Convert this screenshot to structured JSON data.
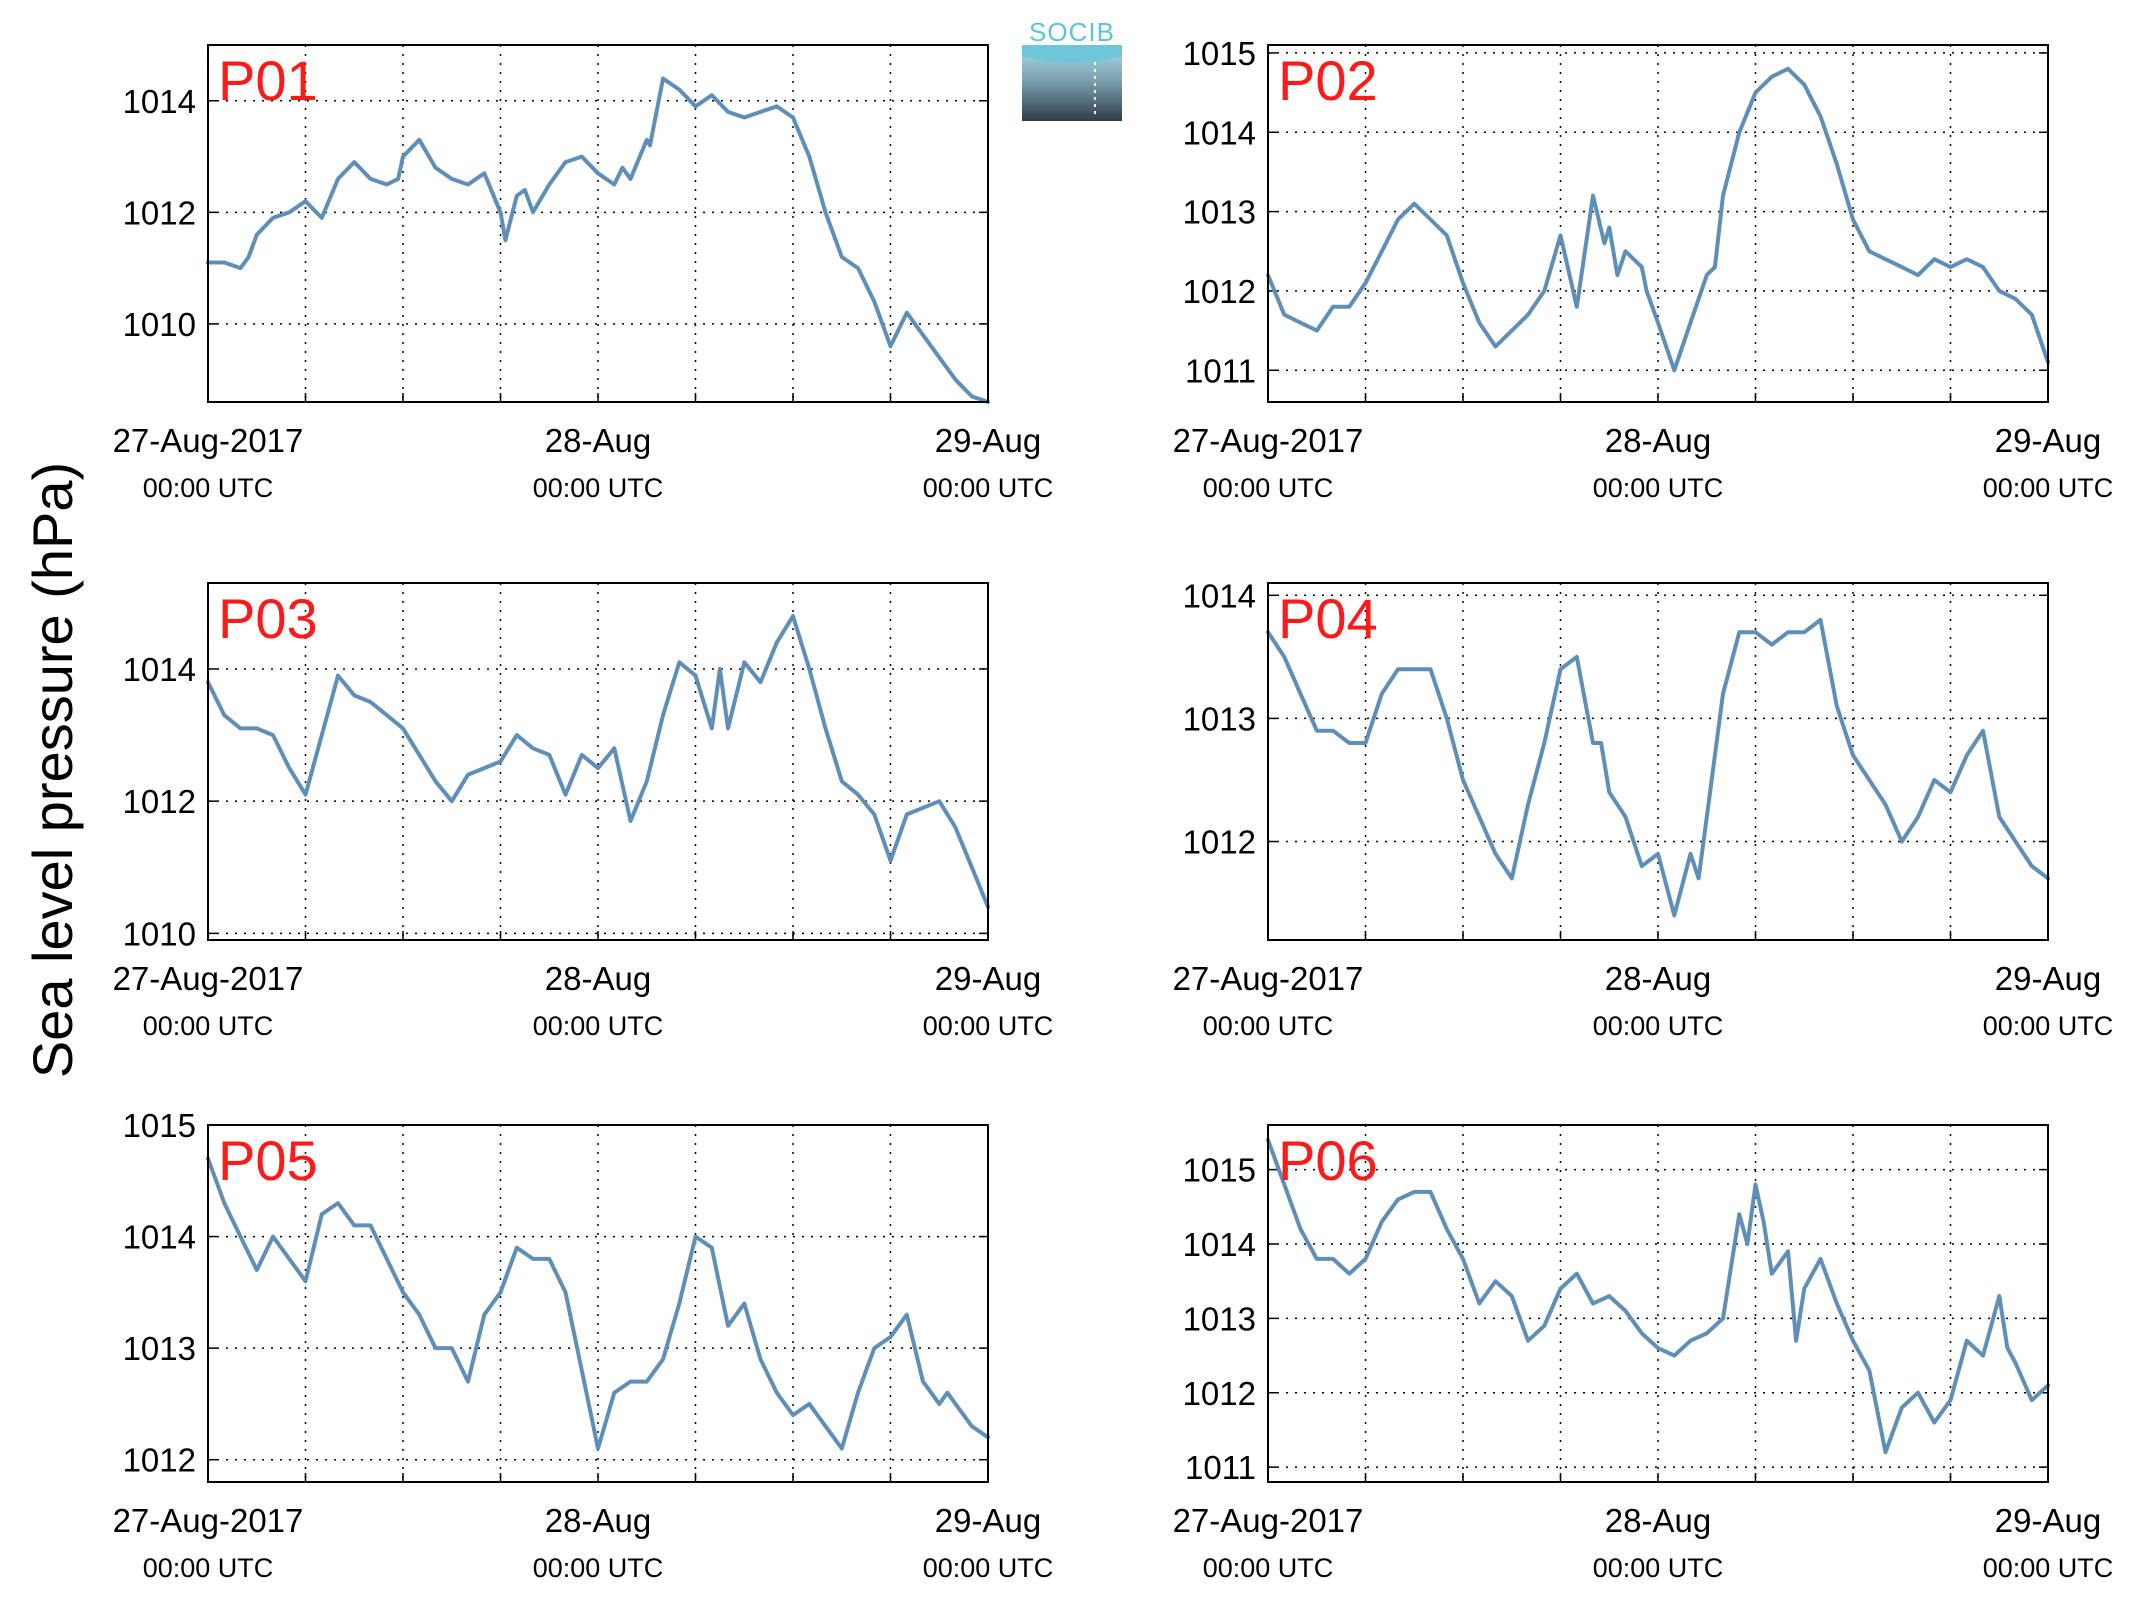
{
  "figure": {
    "ylabel": "Sea level pressure (hPa)",
    "logo_text": "SOCIB",
    "line_color": "#5f8fb8",
    "title_color": "#ff1a1a"
  },
  "chart_data": [
    {
      "type": "line",
      "title": "P01",
      "xlabel": "",
      "ylabel": "Sea level pressure (hPa)",
      "xlim": [
        0,
        48
      ],
      "ylim": [
        1008.6,
        1015.0
      ],
      "yticks": [
        1010,
        1012,
        1014
      ],
      "xticks": [
        {
          "x": 0,
          "label": "27-Aug-2017",
          "sub": "00:00 UTC"
        },
        {
          "x": 24,
          "label": "28-Aug",
          "sub": "00:00 UTC"
        },
        {
          "x": 48,
          "label": "29-Aug",
          "sub": "00:00 UTC"
        }
      ],
      "grid": true,
      "series": [
        {
          "x": [
            0,
            1,
            2,
            2.5,
            3,
            4,
            5,
            6,
            7,
            8,
            9,
            10,
            11,
            11.7,
            12,
            13,
            14,
            15,
            16,
            17,
            18,
            18.3,
            19,
            19.5,
            20,
            21,
            22,
            23,
            24,
            25,
            25.5,
            26,
            27,
            27.2,
            28,
            29,
            30,
            31,
            32,
            33,
            34,
            35,
            36,
            37,
            38,
            39,
            40,
            41,
            42,
            43,
            44,
            45,
            46,
            47,
            48
          ],
          "y": [
            1011.1,
            1011.1,
            1011.0,
            1011.2,
            1011.6,
            1011.9,
            1012.0,
            1012.2,
            1011.9,
            1012.6,
            1012.9,
            1012.6,
            1012.5,
            1012.6,
            1013.0,
            1013.3,
            1012.8,
            1012.6,
            1012.5,
            1012.7,
            1012.0,
            1011.5,
            1012.3,
            1012.4,
            1012.0,
            1012.5,
            1012.9,
            1013.0,
            1012.7,
            1012.5,
            1012.8,
            1012.6,
            1013.3,
            1013.2,
            1014.4,
            1014.2,
            1013.9,
            1014.1,
            1013.8,
            1013.7,
            1013.8,
            1013.9,
            1013.7,
            1013.0,
            1012.0,
            1011.2,
            1011.0,
            1010.4,
            1009.6,
            1010.2,
            1009.8,
            1009.4,
            1009.0,
            1008.7,
            1008.6
          ]
        }
      ]
    },
    {
      "type": "line",
      "title": "P02",
      "xlabel": "",
      "ylabel": "Sea level pressure (hPa)",
      "xlim": [
        0,
        48
      ],
      "ylim": [
        1010.6,
        1015.1
      ],
      "yticks": [
        1011,
        1012,
        1013,
        1014,
        1015
      ],
      "xticks": [
        {
          "x": 0,
          "label": "27-Aug-2017",
          "sub": "00:00 UTC"
        },
        {
          "x": 24,
          "label": "28-Aug",
          "sub": "00:00 UTC"
        },
        {
          "x": 48,
          "label": "29-Aug",
          "sub": "00:00 UTC"
        }
      ],
      "grid": true,
      "series": [
        {
          "x": [
            0,
            1,
            2,
            3,
            4,
            5,
            6,
            7,
            8,
            9,
            10,
            11,
            12,
            13,
            14,
            15,
            16,
            17,
            18,
            19,
            20,
            20.7,
            21,
            21.5,
            22,
            23,
            23.3,
            24,
            25,
            26,
            27,
            27.5,
            28,
            29,
            30,
            31,
            32,
            33,
            34,
            35,
            36,
            37,
            38,
            39,
            40,
            41,
            42,
            43,
            44,
            45,
            46,
            47,
            48
          ],
          "y": [
            1012.2,
            1011.7,
            1011.6,
            1011.5,
            1011.8,
            1011.8,
            1012.1,
            1012.5,
            1012.9,
            1013.1,
            1012.9,
            1012.7,
            1012.1,
            1011.6,
            1011.3,
            1011.5,
            1011.7,
            1012.0,
            1012.7,
            1011.8,
            1013.2,
            1012.6,
            1012.8,
            1012.2,
            1012.5,
            1012.3,
            1012.0,
            1011.6,
            1011.0,
            1011.6,
            1012.2,
            1012.3,
            1013.2,
            1014.0,
            1014.5,
            1014.7,
            1014.8,
            1014.6,
            1014.2,
            1013.6,
            1012.9,
            1012.5,
            1012.4,
            1012.3,
            1012.2,
            1012.4,
            1012.3,
            1012.4,
            1012.3,
            1012.0,
            1011.9,
            1011.7,
            1011.1
          ]
        }
      ]
    },
    {
      "type": "line",
      "title": "P03",
      "xlabel": "",
      "ylabel": "Sea level pressure (hPa)",
      "xlim": [
        0,
        48
      ],
      "ylim": [
        1009.9,
        1015.3
      ],
      "yticks": [
        1010,
        1012,
        1014
      ],
      "xticks": [
        {
          "x": 0,
          "label": "27-Aug-2017",
          "sub": "00:00 UTC"
        },
        {
          "x": 24,
          "label": "28-Aug",
          "sub": "00:00 UTC"
        },
        {
          "x": 48,
          "label": "29-Aug",
          "sub": "00:00 UTC"
        }
      ],
      "grid": true,
      "series": [
        {
          "x": [
            0,
            1,
            2,
            3,
            4,
            5,
            6,
            7,
            8,
            9,
            10,
            11,
            12,
            13,
            14,
            15,
            16,
            17,
            18,
            19,
            20,
            21,
            22,
            23,
            24,
            25,
            26,
            27,
            28,
            29,
            30,
            31,
            31.5,
            32,
            32.7,
            33,
            34,
            35,
            36,
            37,
            38,
            39,
            40,
            41,
            42,
            43,
            44,
            45,
            46,
            47,
            48
          ],
          "y": [
            1013.8,
            1013.3,
            1013.1,
            1013.1,
            1013.0,
            1012.5,
            1012.1,
            1013.0,
            1013.9,
            1013.6,
            1013.5,
            1013.3,
            1013.1,
            1012.7,
            1012.3,
            1012.0,
            1012.4,
            1012.5,
            1012.6,
            1013.0,
            1012.8,
            1012.7,
            1012.1,
            1012.7,
            1012.5,
            1012.8,
            1011.7,
            1012.3,
            1013.3,
            1014.1,
            1013.9,
            1013.1,
            1014.0,
            1013.1,
            1013.8,
            1014.1,
            1013.8,
            1014.4,
            1014.8,
            1014.0,
            1013.1,
            1012.3,
            1012.1,
            1011.8,
            1011.1,
            1011.8,
            1011.9,
            1012.0,
            1011.6,
            1011.0,
            1010.4
          ]
        }
      ]
    },
    {
      "type": "line",
      "title": "P04",
      "xlabel": "",
      "ylabel": "Sea level pressure (hPa)",
      "xlim": [
        0,
        48
      ],
      "ylim": [
        1011.2,
        1014.1
      ],
      "yticks": [
        1012,
        1013,
        1014
      ],
      "xticks": [
        {
          "x": 0,
          "label": "27-Aug-2017",
          "sub": "00:00 UTC"
        },
        {
          "x": 24,
          "label": "28-Aug",
          "sub": "00:00 UTC"
        },
        {
          "x": 48,
          "label": "29-Aug",
          "sub": "00:00 UTC"
        }
      ],
      "grid": true,
      "series": [
        {
          "x": [
            0,
            1,
            2,
            3,
            4,
            5,
            6,
            7,
            8,
            9,
            10,
            11,
            12,
            13,
            14,
            15,
            16,
            17,
            18,
            19,
            20,
            20.5,
            21,
            22,
            23,
            24,
            25,
            26,
            26.5,
            27,
            28,
            29,
            30,
            31,
            32,
            33,
            34,
            35,
            36,
            37,
            38,
            39,
            40,
            41,
            42,
            43,
            44,
            45,
            46,
            47,
            48
          ],
          "y": [
            1013.7,
            1013.5,
            1013.2,
            1012.9,
            1012.9,
            1012.8,
            1012.8,
            1013.2,
            1013.4,
            1013.4,
            1013.4,
            1013.0,
            1012.5,
            1012.2,
            1011.9,
            1011.7,
            1012.3,
            1012.8,
            1013.4,
            1013.5,
            1012.8,
            1012.8,
            1012.4,
            1012.2,
            1011.8,
            1011.9,
            1011.4,
            1011.9,
            1011.7,
            1012.2,
            1013.2,
            1013.7,
            1013.7,
            1013.6,
            1013.7,
            1013.7,
            1013.8,
            1013.1,
            1012.7,
            1012.5,
            1012.3,
            1012.0,
            1012.2,
            1012.5,
            1012.4,
            1012.7,
            1012.9,
            1012.2,
            1012.0,
            1011.8,
            1011.7
          ]
        }
      ]
    },
    {
      "type": "line",
      "title": "P05",
      "xlabel": "",
      "ylabel": "Sea level pressure (hPa)",
      "xlim": [
        0,
        48
      ],
      "ylim": [
        1011.8,
        1015.0
      ],
      "yticks": [
        1012,
        1013,
        1014,
        1015
      ],
      "xticks": [
        {
          "x": 0,
          "label": "27-Aug-2017",
          "sub": "00:00 UTC"
        },
        {
          "x": 24,
          "label": "28-Aug",
          "sub": "00:00 UTC"
        },
        {
          "x": 48,
          "label": "29-Aug",
          "sub": "00:00 UTC"
        }
      ],
      "grid": true,
      "series": [
        {
          "x": [
            0,
            1,
            2,
            3,
            4,
            5,
            6,
            7,
            8,
            9,
            10,
            11,
            12,
            13,
            14,
            15,
            16,
            17,
            18,
            19,
            20,
            21,
            22,
            23,
            24,
            25,
            26,
            27,
            28,
            29,
            30,
            31,
            32,
            33,
            34,
            35,
            36,
            37,
            38,
            39,
            40,
            41,
            42,
            43,
            44,
            45,
            45.5,
            46,
            47,
            48
          ],
          "y": [
            1014.7,
            1014.3,
            1014.0,
            1013.7,
            1014.0,
            1013.8,
            1013.6,
            1014.2,
            1014.3,
            1014.1,
            1014.1,
            1013.8,
            1013.5,
            1013.3,
            1013.0,
            1013.0,
            1012.7,
            1013.3,
            1013.5,
            1013.9,
            1013.8,
            1013.8,
            1013.5,
            1012.8,
            1012.1,
            1012.6,
            1012.7,
            1012.7,
            1012.9,
            1013.4,
            1014.0,
            1013.9,
            1013.2,
            1013.4,
            1012.9,
            1012.6,
            1012.4,
            1012.5,
            1012.3,
            1012.1,
            1012.6,
            1013.0,
            1013.1,
            1013.3,
            1012.7,
            1012.5,
            1012.6,
            1012.5,
            1012.3,
            1012.2
          ]
        }
      ]
    },
    {
      "type": "line",
      "title": "P06",
      "xlabel": "",
      "ylabel": "Sea level pressure (hPa)",
      "xlim": [
        0,
        48
      ],
      "ylim": [
        1010.8,
        1015.6
      ],
      "yticks": [
        1011,
        1012,
        1013,
        1014,
        1015
      ],
      "xticks": [
        {
          "x": 0,
          "label": "27-Aug-2017",
          "sub": "00:00 UTC"
        },
        {
          "x": 24,
          "label": "28-Aug",
          "sub": "00:00 UTC"
        },
        {
          "x": 48,
          "label": "29-Aug",
          "sub": "00:00 UTC"
        }
      ],
      "grid": true,
      "series": [
        {
          "x": [
            0,
            1,
            2,
            3,
            4,
            5,
            6,
            7,
            8,
            9,
            10,
            11,
            12,
            13,
            14,
            15,
            16,
            17,
            18,
            19,
            20,
            21,
            22,
            23,
            24,
            25,
            26,
            27,
            28,
            29,
            29.5,
            30,
            30.5,
            31,
            32,
            32.5,
            33,
            34,
            35,
            36,
            37,
            38,
            39,
            40,
            41,
            42,
            43,
            44,
            45,
            45.5,
            46,
            47,
            48
          ],
          "y": [
            1015.4,
            1014.8,
            1014.2,
            1013.8,
            1013.8,
            1013.6,
            1013.8,
            1014.3,
            1014.6,
            1014.7,
            1014.7,
            1014.2,
            1013.8,
            1013.2,
            1013.5,
            1013.3,
            1012.7,
            1012.9,
            1013.4,
            1013.6,
            1013.2,
            1013.3,
            1013.1,
            1012.8,
            1012.6,
            1012.5,
            1012.7,
            1012.8,
            1013.0,
            1014.4,
            1014.0,
            1014.8,
            1014.3,
            1013.6,
            1013.9,
            1012.7,
            1013.4,
            1013.8,
            1013.2,
            1012.7,
            1012.3,
            1011.2,
            1011.8,
            1012.0,
            1011.6,
            1011.9,
            1012.7,
            1012.5,
            1013.3,
            1012.6,
            1012.4,
            1011.9,
            1012.1
          ]
        }
      ]
    }
  ]
}
